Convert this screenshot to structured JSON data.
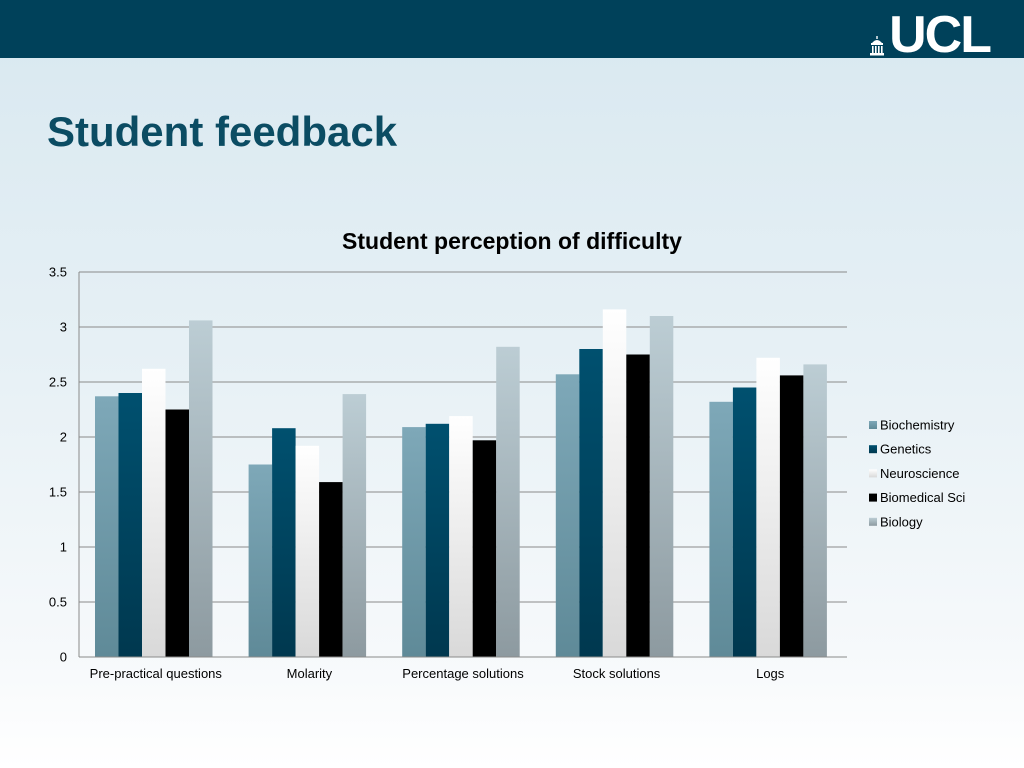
{
  "header": {
    "logo_text": "UCL",
    "logo_icon": "portico-dome-icon"
  },
  "slide": {
    "title": "Student feedback"
  },
  "colors": {
    "header_bar": "#00415a",
    "title": "#0b4c63",
    "Biochemistry": "#6f99a8",
    "Genetics": "#004a66",
    "Neuroscience": "#f4f4f4",
    "Biomedical Sci": "#000000",
    "Biology": "#b7c8cf"
  },
  "chart_data": {
    "type": "bar",
    "title": "Student perception of difficulty",
    "xlabel": "",
    "ylabel": "",
    "ylim": [
      0,
      3.5
    ],
    "yticks": [
      "0",
      "0.5",
      "1",
      "1.5",
      "2",
      "2.5",
      "3",
      "3.5"
    ],
    "grid": true,
    "legend_position": "right",
    "categories": [
      "Pre-practical questions",
      "Molarity",
      "Percentage solutions",
      "Stock solutions",
      "Logs"
    ],
    "series": [
      {
        "name": "Biochemistry",
        "values": [
          2.37,
          1.75,
          2.09,
          2.57,
          2.32
        ]
      },
      {
        "name": "Genetics",
        "values": [
          2.4,
          2.08,
          2.12,
          2.8,
          2.45
        ]
      },
      {
        "name": "Neuroscience",
        "values": [
          2.62,
          1.92,
          2.19,
          3.16,
          2.72
        ]
      },
      {
        "name": "Biomedical Sci",
        "values": [
          2.25,
          1.59,
          1.97,
          2.75,
          2.56
        ]
      },
      {
        "name": "Biology",
        "values": [
          3.06,
          2.39,
          2.82,
          3.1,
          2.66
        ]
      }
    ]
  }
}
